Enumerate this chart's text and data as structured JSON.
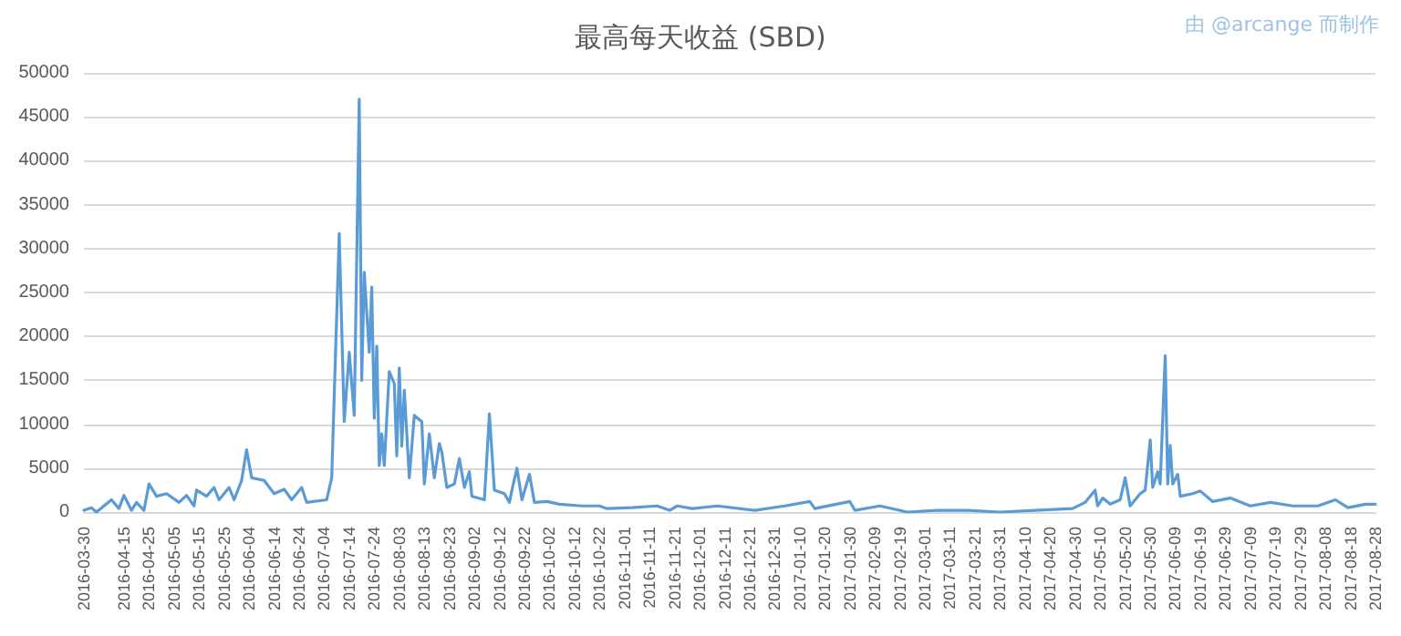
{
  "chart_data": {
    "type": "line",
    "title": "最高每天收益 (SBD)",
    "annotations": [
      "由 @arcange 而制作"
    ],
    "x": [
      "2016-03-30",
      "2016-04-02",
      "2016-04-04",
      "2016-04-10",
      "2016-04-13",
      "2016-04-15",
      "2016-04-18",
      "2016-04-20",
      "2016-04-23",
      "2016-04-25",
      "2016-04-28",
      "2016-05-02",
      "2016-05-07",
      "2016-05-10",
      "2016-05-13",
      "2016-05-14",
      "2016-05-18",
      "2016-05-21",
      "2016-05-23",
      "2016-05-27",
      "2016-05-29",
      "2016-06-01",
      "2016-06-03",
      "2016-06-05",
      "2016-06-10",
      "2016-06-14",
      "2016-06-18",
      "2016-06-21",
      "2016-06-25",
      "2016-06-27",
      "2016-07-05",
      "2016-07-07",
      "2016-07-10",
      "2016-07-12",
      "2016-07-14",
      "2016-07-16",
      "2016-07-18",
      "2016-07-19",
      "2016-07-20",
      "2016-07-22",
      "2016-07-23",
      "2016-07-24",
      "2016-07-25",
      "2016-07-26",
      "2016-07-27",
      "2016-07-28",
      "2016-07-30",
      "2016-08-01",
      "2016-08-02",
      "2016-08-03",
      "2016-08-04",
      "2016-08-05",
      "2016-08-07",
      "2016-08-09",
      "2016-08-12",
      "2016-08-13",
      "2016-08-15",
      "2016-08-17",
      "2016-08-19",
      "2016-08-20",
      "2016-08-22",
      "2016-08-25",
      "2016-08-27",
      "2016-08-29",
      "2016-08-31",
      "2016-09-01",
      "2016-09-06",
      "2016-09-08",
      "2016-09-10",
      "2016-09-14",
      "2016-09-16",
      "2016-09-17",
      "2016-09-19",
      "2016-09-21",
      "2016-09-24",
      "2016-09-26",
      "2016-10-01",
      "2016-10-06",
      "2016-10-15",
      "2016-10-22",
      "2016-10-25",
      "2016-11-04",
      "2016-11-14",
      "2016-11-19",
      "2016-11-22",
      "2016-11-28",
      "2016-12-08",
      "2016-12-23",
      "2017-01-04",
      "2017-01-14",
      "2017-01-16",
      "2017-01-30",
      "2017-02-01",
      "2017-02-11",
      "2017-02-22",
      "2017-03-06",
      "2017-03-18",
      "2017-03-31",
      "2017-04-14",
      "2017-04-29",
      "2017-05-04",
      "2017-05-08",
      "2017-05-09",
      "2017-05-11",
      "2017-05-14",
      "2017-05-18",
      "2017-05-20",
      "2017-05-22",
      "2017-05-26",
      "2017-05-28",
      "2017-05-30",
      "2017-05-31",
      "2017-06-02",
      "2017-06-03",
      "2017-06-05",
      "2017-06-06",
      "2017-06-07",
      "2017-06-08",
      "2017-06-10",
      "2017-06-11",
      "2017-06-16",
      "2017-06-19",
      "2017-06-24",
      "2017-07-01",
      "2017-07-09",
      "2017-07-17",
      "2017-07-26",
      "2017-08-05",
      "2017-08-12",
      "2017-08-17",
      "2017-08-24",
      "2017-08-28"
    ],
    "series": [
      {
        "color": "#5b9bd5",
        "values": [
          200,
          500,
          0,
          1400,
          400,
          1900,
          200,
          1100,
          200,
          3200,
          1800,
          2100,
          1100,
          1900,
          700,
          2500,
          1800,
          2800,
          1400,
          2800,
          1400,
          3600,
          7100,
          3900,
          3600,
          2100,
          2600,
          1400,
          2800,
          1100,
          1400,
          3900,
          31700,
          10300,
          18200,
          11000,
          47000,
          15000,
          27300,
          18200,
          25600,
          10700,
          18900,
          5300,
          8900,
          5300,
          16000,
          14600,
          6400,
          16400,
          7500,
          13900,
          3900,
          11000,
          10300,
          3200,
          8900,
          3900,
          7800,
          6800,
          2800,
          3200,
          6100,
          2800,
          4600,
          1800,
          1400,
          11200,
          2500,
          2100,
          1100,
          2500,
          5000,
          1400,
          4300,
          1100,
          1200,
          900,
          700,
          700,
          400,
          500,
          700,
          200,
          700,
          400,
          700,
          200,
          700,
          1200,
          400,
          1200,
          200,
          700,
          0,
          200,
          200,
          0,
          200,
          400,
          1100,
          2500,
          700,
          1600,
          900,
          1400,
          3900,
          700,
          2100,
          2500,
          8200,
          2800,
          4600,
          3200,
          17800,
          3200,
          7600,
          3200,
          4300,
          1800,
          2100,
          2400,
          1200,
          1600,
          700,
          1100,
          700,
          700,
          1400,
          500,
          900,
          900
        ]
      }
    ],
    "xlim": [
      "2016-03-30",
      "2017-08-28"
    ],
    "xticks": [
      "2016-03-30",
      "2016-04-15",
      "2016-04-25",
      "2016-05-05",
      "2016-05-15",
      "2016-05-25",
      "2016-06-04",
      "2016-06-14",
      "2016-06-24",
      "2016-07-04",
      "2016-07-14",
      "2016-07-24",
      "2016-08-03",
      "2016-08-13",
      "2016-08-23",
      "2016-09-02",
      "2016-09-12",
      "2016-09-22",
      "2016-10-02",
      "2016-10-12",
      "2016-10-22",
      "2016-11-01",
      "2016-11-11",
      "2016-11-21",
      "2016-12-01",
      "2016-12-11",
      "2016-12-21",
      "2016-12-31",
      "2017-01-10",
      "2017-01-20",
      "2017-01-30",
      "2017-02-09",
      "2017-02-19",
      "2017-03-01",
      "2017-03-11",
      "2017-03-21",
      "2017-03-31",
      "2017-04-10",
      "2017-04-20",
      "2017-04-30",
      "2017-05-10",
      "2017-05-20",
      "2017-05-30",
      "2017-06-09",
      "2017-06-19",
      "2017-06-29",
      "2017-07-09",
      "2017-07-19",
      "2017-07-29",
      "2017-08-08",
      "2017-08-18",
      "2017-08-28"
    ],
    "ylim": [
      0,
      50000
    ],
    "yticks": [
      0,
      5000,
      10000,
      15000,
      20000,
      25000,
      30000,
      35000,
      40000,
      45000,
      50000
    ],
    "grid": "y",
    "marker": "none",
    "line_style": "solid"
  }
}
